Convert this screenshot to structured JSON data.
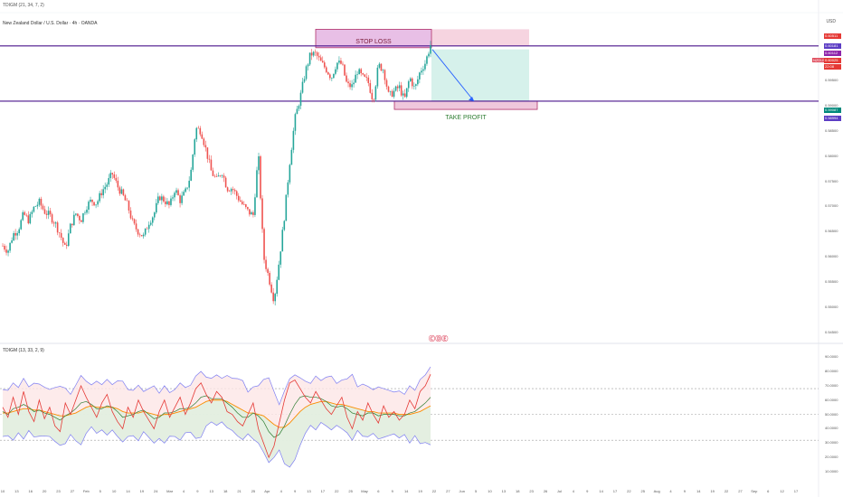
{
  "header": {
    "indicator_short": "TDIGM (21, 34, 7, 2)",
    "symbol": "New Zealand Dollar / U.S. Dollar · 4h · OANDA",
    "currency": "USD",
    "oscillator_label": "TDIGM (13, 33, 2, 9)",
    "logo": "ⒸⒹⒺ"
  },
  "annotations": {
    "stop_loss": "STOP LOSS",
    "take_profit": "TAKE PROFIT",
    "symbol_tag": "NZDUSD"
  },
  "colors": {
    "up": "#26a69a",
    "down": "#ef5350",
    "horizontal_line": "#4a148c",
    "stop_zone": "#f3c6d6",
    "target_zone": "#d2efe9",
    "arrow": "#2962ff",
    "band": "#7e7ef2",
    "osc_red": "#e53935",
    "osc_orange": "#fb8c00",
    "osc_green": "#2e7d32"
  },
  "price_tags": [
    {
      "text": "0.60511",
      "color": "#e53935"
    },
    {
      "text": "0.60181",
      "color": "#5c3dc4"
    },
    {
      "text": "0.60112",
      "color": "#8e24aa"
    },
    {
      "text": "0.60025",
      "color": "#e53935"
    },
    {
      "text": "22:08",
      "color": "#e53935"
    },
    {
      "text": "0.59087",
      "color": "#00897b"
    },
    {
      "text": "0.58994",
      "color": "#5c3dc4"
    }
  ],
  "chart_data": [
    {
      "type": "candlestick",
      "title": "New Zealand Dollar / U.S. Dollar · 4h · OANDA",
      "y_axis_ticks": [
        "0.59500",
        "0.59000",
        "0.58500",
        "0.58000",
        "0.57500",
        "0.57000",
        "0.56500",
        "0.56000",
        "0.55500",
        "0.55000",
        "0.54500"
      ],
      "x_axis_ticks": [
        "10",
        "13",
        "16",
        "20",
        "23",
        "27",
        "Feb",
        "5",
        "10",
        "14",
        "19",
        "24",
        "Mar",
        "4",
        "9",
        "13",
        "18",
        "21",
        "25",
        "Apr",
        "4",
        "9",
        "13",
        "17",
        "22",
        "25",
        "May",
        "6",
        "9",
        "14",
        "19",
        "22",
        "27",
        "Jun",
        "5",
        "10",
        "13",
        "18",
        "23",
        "26",
        "Jul",
        "4",
        "9",
        "14",
        "17",
        "22",
        "25",
        "Aug",
        "4",
        "9",
        "14",
        "19",
        "22",
        "27",
        "Sep",
        "6",
        "12",
        "17"
      ],
      "close_path": [
        0.5622,
        0.5612,
        0.5645,
        0.5655,
        0.5685,
        0.5672,
        0.5698,
        0.5708,
        0.569,
        0.5682,
        0.5668,
        0.5645,
        0.5615,
        0.5662,
        0.5686,
        0.5673,
        0.57,
        0.5712,
        0.5706,
        0.573,
        0.5745,
        0.5765,
        0.574,
        0.5722,
        0.57,
        0.5664,
        0.565,
        0.564,
        0.5669,
        0.5685,
        0.572,
        0.5712,
        0.57,
        0.5735,
        0.5712,
        0.5728,
        0.5762,
        0.5855,
        0.585,
        0.581,
        0.5768,
        0.5752,
        0.577,
        0.5736,
        0.5736,
        0.5719,
        0.5703,
        0.569,
        0.5682,
        0.5804,
        0.56,
        0.5559,
        0.5514,
        0.5593,
        0.5682,
        0.5787,
        0.5873,
        0.5915,
        0.5967,
        0.6002,
        0.6002,
        0.5985,
        0.5972,
        0.5955,
        0.5985,
        0.5982,
        0.594,
        0.5938,
        0.5969,
        0.5955,
        0.5948,
        0.591,
        0.598,
        0.5971,
        0.5918,
        0.5928,
        0.5937,
        0.591,
        0.5956,
        0.5932,
        0.5968,
        0.5985,
        0.602
      ],
      "horizontal_lines": [
        0.60181,
        0.59087
      ],
      "stop_loss_zone": [
        0.60181,
        0.60511
      ],
      "take_profit_zone": [
        0.58994,
        0.59087
      ],
      "projection": {
        "from": 0.60112,
        "to": 0.59087
      }
    },
    {
      "type": "line",
      "title": "TDIGM (13, 33, 2, 9)",
      "y_axis_ticks": [
        "90.0000",
        "80.0000",
        "70.0000",
        "60.0000",
        "50.0000",
        "40.0000",
        "30.0000",
        "20.0000",
        "10.0000"
      ],
      "levels": [
        68,
        50,
        32
      ],
      "ylim": [
        5,
        92
      ],
      "series": [
        {
          "values": [
            55,
            48,
            62,
            50,
            66,
            52,
            45,
            60,
            47,
            55,
            42,
            38,
            58,
            50,
            60,
            70,
            62,
            55,
            48,
            58,
            64,
            52,
            45,
            40,
            55,
            48,
            60,
            52,
            46,
            40,
            52,
            60,
            48,
            55,
            62,
            50,
            58,
            68,
            72,
            64,
            58,
            66,
            62,
            52,
            50,
            45,
            42,
            50,
            58,
            40,
            30,
            20,
            28,
            44,
            60,
            72,
            74,
            68,
            62,
            58,
            66,
            60,
            54,
            50,
            56,
            62,
            48,
            40,
            52,
            46,
            58,
            50,
            44,
            56,
            48,
            52,
            46,
            50,
            60,
            54,
            66,
            70,
            78
          ]
        },
        {
          "values": [
            52,
            50,
            54,
            55,
            57,
            55,
            52,
            53,
            51,
            50,
            48,
            46,
            49,
            51,
            54,
            58,
            59,
            57,
            54,
            54,
            56,
            55,
            52,
            48,
            49,
            50,
            52,
            53,
            50,
            47,
            48,
            51,
            51,
            52,
            54,
            54,
            55,
            58,
            62,
            63,
            61,
            61,
            61,
            58,
            55,
            51,
            48,
            48,
            51,
            49,
            45,
            38,
            34,
            36,
            42,
            50,
            57,
            62,
            63,
            62,
            62,
            61,
            59,
            56,
            55,
            56,
            54,
            51,
            50,
            49,
            51,
            51,
            49,
            50,
            50,
            50,
            49,
            49,
            51,
            52,
            55,
            58,
            62
          ]
        },
        {
          "values": [
            51,
            51,
            52,
            53,
            54,
            54,
            53,
            53,
            52,
            51,
            50,
            49,
            49,
            50,
            51,
            53,
            55,
            56,
            55,
            55,
            55,
            55,
            54,
            52,
            51,
            51,
            51,
            52,
            51,
            50,
            49,
            50,
            50,
            51,
            52,
            53,
            54,
            55,
            57,
            59,
            60,
            60,
            60,
            59,
            57,
            55,
            53,
            51,
            51,
            50,
            49,
            46,
            43,
            41,
            41,
            44,
            48,
            52,
            55,
            57,
            58,
            59,
            59,
            58,
            57,
            57,
            56,
            55,
            54,
            53,
            52,
            52,
            51,
            51,
            51,
            51,
            50,
            50,
            50,
            51,
            52,
            54,
            56
          ]
        }
      ]
    }
  ]
}
